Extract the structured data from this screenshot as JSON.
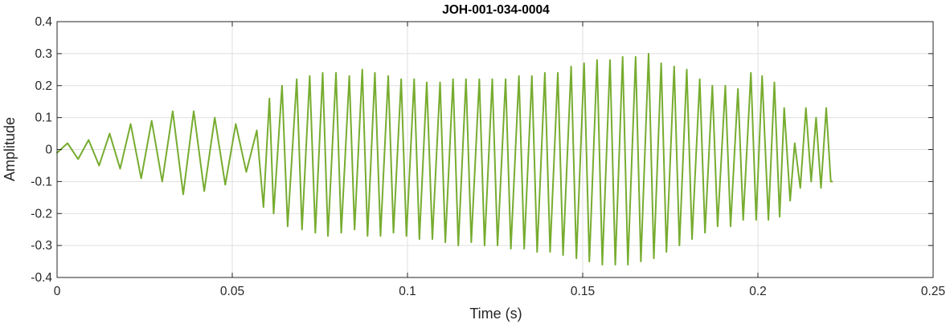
{
  "chart_data": {
    "type": "line",
    "title": "JOH-001-034-0004",
    "xlabel": "Time (s)",
    "ylabel": "Amplitude",
    "xlim": [
      0,
      0.25
    ],
    "ylim": [
      -0.4,
      0.4
    ],
    "xticks": [
      0,
      0.05,
      0.1,
      0.15,
      0.2,
      0.25
    ],
    "xtick_labels": [
      "0",
      "0.05",
      "0.1",
      "0.15",
      "0.2",
      "0.25"
    ],
    "yticks": [
      -0.4,
      -0.3,
      -0.2,
      -0.1,
      0,
      0.1,
      0.2,
      0.3,
      0.4
    ],
    "ytick_labels": [
      "-0.4",
      "-0.3",
      "-0.2",
      "-0.1",
      "0",
      "0.1",
      "0.2",
      "0.3",
      "0.4"
    ],
    "grid": true,
    "box": true,
    "line_color": "#77ac30",
    "series": [
      {
        "x": [
          0.0,
          0.003,
          0.006,
          0.009,
          0.012,
          0.015,
          0.018,
          0.021,
          0.024,
          0.027,
          0.03,
          0.033,
          0.036,
          0.039,
          0.042,
          0.045,
          0.048,
          0.051,
          0.054,
          0.057,
          0.0589,
          0.0606,
          0.0618,
          0.0642,
          0.0658,
          0.0684,
          0.0699,
          0.0721,
          0.0737,
          0.0758,
          0.0773,
          0.0796,
          0.0811,
          0.0834,
          0.0849,
          0.0871,
          0.0886,
          0.0907,
          0.0923,
          0.0945,
          0.096,
          0.0982,
          0.0997,
          0.1019,
          0.1034,
          0.1055,
          0.1071,
          0.1093,
          0.1108,
          0.113,
          0.1145,
          0.1167,
          0.1182,
          0.1205,
          0.122,
          0.1242,
          0.1257,
          0.128,
          0.1295,
          0.1318,
          0.1333,
          0.1355,
          0.137,
          0.1392,
          0.1407,
          0.1429,
          0.1444,
          0.1467,
          0.1482,
          0.1504,
          0.1519,
          0.1541,
          0.1556,
          0.1578,
          0.1593,
          0.1614,
          0.1629,
          0.1651,
          0.1666,
          0.1688,
          0.1703,
          0.1724,
          0.1739,
          0.1761,
          0.1776,
          0.1797,
          0.1812,
          0.1834,
          0.1849,
          0.187,
          0.1885,
          0.1907,
          0.1922,
          0.1943,
          0.1958,
          0.198,
          0.1995,
          0.2012,
          0.203,
          0.2047,
          0.2062,
          0.2075,
          0.2092,
          0.2105,
          0.2121,
          0.2137,
          0.2152,
          0.2166,
          0.218,
          0.2195,
          0.2208,
          0.2212
        ],
        "y": [
          -0.01,
          0.02,
          -0.03,
          0.03,
          -0.05,
          0.05,
          -0.06,
          0.08,
          -0.09,
          0.09,
          -0.1,
          0.12,
          -0.14,
          0.12,
          -0.13,
          0.1,
          -0.11,
          0.08,
          -0.07,
          0.06,
          -0.18,
          0.16,
          -0.2,
          0.2,
          -0.24,
          0.22,
          -0.25,
          0.23,
          -0.26,
          0.24,
          -0.27,
          0.24,
          -0.26,
          0.23,
          -0.25,
          0.25,
          -0.27,
          0.24,
          -0.27,
          0.23,
          -0.26,
          0.22,
          -0.27,
          0.22,
          -0.28,
          0.21,
          -0.28,
          0.21,
          -0.29,
          0.22,
          -0.3,
          0.22,
          -0.29,
          0.22,
          -0.3,
          0.22,
          -0.3,
          0.22,
          -0.31,
          0.23,
          -0.31,
          0.23,
          -0.32,
          0.24,
          -0.32,
          0.24,
          -0.33,
          0.26,
          -0.34,
          0.27,
          -0.35,
          0.28,
          -0.36,
          0.28,
          -0.36,
          0.29,
          -0.36,
          0.29,
          -0.35,
          0.3,
          -0.34,
          0.27,
          -0.32,
          0.26,
          -0.3,
          0.25,
          -0.28,
          0.22,
          -0.26,
          0.2,
          -0.24,
          0.2,
          -0.24,
          0.19,
          -0.22,
          0.24,
          -0.22,
          0.23,
          -0.22,
          0.21,
          -0.21,
          0.13,
          -0.16,
          0.02,
          -0.12,
          0.13,
          -0.1,
          0.1,
          -0.12,
          0.13,
          -0.1,
          -0.1
        ]
      }
    ]
  }
}
